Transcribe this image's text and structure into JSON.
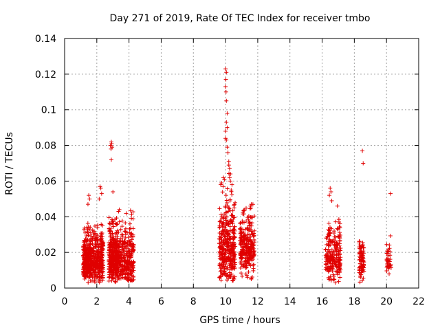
{
  "chart_data": {
    "type": "scatter",
    "title": "Day 271 of 2019, Rate Of TEC Index for receiver tmbo",
    "xlabel": "GPS time / hours",
    "ylabel": "ROTI / TECUs",
    "xlim": [
      0,
      22
    ],
    "ylim": [
      0,
      0.14
    ],
    "xticks": [
      0,
      2,
      4,
      6,
      8,
      10,
      12,
      14,
      16,
      18,
      20,
      22
    ],
    "yticks": [
      0,
      0.02,
      0.04,
      0.06,
      0.08,
      0.1,
      0.12,
      0.14
    ],
    "ytick_labels": [
      "0",
      "0.02",
      "0.04",
      "0.06",
      "0.08",
      "0.1",
      "0.12",
      "0.14"
    ],
    "grid": true,
    "marker": "+",
    "color": "#e00000",
    "clusters": [
      {
        "x_range": [
          1.15,
          1.7
        ],
        "y_median": 0.014,
        "y_spread": 0.008,
        "y_min": 0.003,
        "y_max": 0.05,
        "count": 320
      },
      {
        "x_range": [
          1.7,
          2.4
        ],
        "y_median": 0.015,
        "y_spread": 0.009,
        "y_min": 0.003,
        "y_max": 0.057,
        "count": 280
      },
      {
        "x_range": [
          2.75,
          3.3
        ],
        "y_median": 0.016,
        "y_spread": 0.01,
        "y_min": 0.003,
        "y_max": 0.04,
        "count": 320
      },
      {
        "x_range": [
          3.2,
          4.3
        ],
        "y_median": 0.015,
        "y_spread": 0.01,
        "y_min": 0.004,
        "y_max": 0.044,
        "count": 360
      },
      {
        "x_range": [
          9.6,
          10.6
        ],
        "y_median": 0.02,
        "y_spread": 0.013,
        "y_min": 0.004,
        "y_max": 0.065,
        "count": 380
      },
      {
        "x_range": [
          10.9,
          11.8
        ],
        "y_median": 0.021,
        "y_spread": 0.01,
        "y_min": 0.005,
        "y_max": 0.047,
        "count": 280
      },
      {
        "x_range": [
          16.2,
          17.15
        ],
        "y_median": 0.016,
        "y_spread": 0.01,
        "y_min": 0.003,
        "y_max": 0.05,
        "count": 230
      },
      {
        "x_range": [
          18.3,
          18.6
        ],
        "y_median": 0.013,
        "y_spread": 0.007,
        "y_min": 0.003,
        "y_max": 0.027,
        "count": 90
      },
      {
        "x_range": [
          20.0,
          20.3
        ],
        "y_median": 0.014,
        "y_spread": 0.006,
        "y_min": 0.006,
        "y_max": 0.034,
        "count": 40
      }
    ],
    "outliers": [
      [
        1.5,
        0.052
      ],
      [
        1.55,
        0.05
      ],
      [
        1.45,
        0.047
      ],
      [
        2.2,
        0.057
      ],
      [
        2.25,
        0.056
      ],
      [
        2.3,
        0.053
      ],
      [
        2.15,
        0.05
      ],
      [
        2.85,
        0.08
      ],
      [
        2.9,
        0.082
      ],
      [
        2.95,
        0.079
      ],
      [
        2.88,
        0.078
      ],
      [
        2.92,
        0.081
      ],
      [
        2.9,
        0.072
      ],
      [
        3.0,
        0.054
      ],
      [
        3.4,
        0.044
      ],
      [
        3.35,
        0.043
      ],
      [
        10.0,
        0.123
      ],
      [
        10.05,
        0.121
      ],
      [
        10.02,
        0.117
      ],
      [
        10.0,
        0.113
      ],
      [
        10.03,
        0.11
      ],
      [
        10.05,
        0.105
      ],
      [
        10.1,
        0.098
      ],
      [
        10.05,
        0.093
      ],
      [
        10.1,
        0.09
      ],
      [
        10.0,
        0.088
      ],
      [
        10.0,
        0.084
      ],
      [
        10.05,
        0.083
      ],
      [
        10.1,
        0.079
      ],
      [
        10.15,
        0.076
      ],
      [
        10.2,
        0.071
      ],
      [
        10.2,
        0.069
      ],
      [
        10.25,
        0.067
      ],
      [
        10.3,
        0.064
      ],
      [
        10.25,
        0.062
      ],
      [
        10.3,
        0.06
      ],
      [
        9.75,
        0.059
      ],
      [
        9.7,
        0.058
      ],
      [
        9.85,
        0.057
      ],
      [
        10.4,
        0.058
      ],
      [
        10.35,
        0.055
      ],
      [
        11.6,
        0.047
      ],
      [
        11.55,
        0.046
      ],
      [
        16.5,
        0.056
      ],
      [
        16.55,
        0.054
      ],
      [
        16.45,
        0.052
      ],
      [
        16.6,
        0.049
      ],
      [
        16.95,
        0.046
      ],
      [
        18.5,
        0.077
      ],
      [
        18.55,
        0.07
      ],
      [
        20.25,
        0.053
      ]
    ]
  }
}
